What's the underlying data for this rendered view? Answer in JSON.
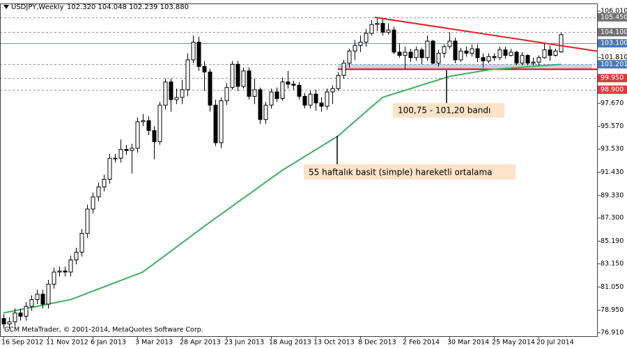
{
  "chart_data": {
    "type": "candlestick",
    "title": "USDJPY,Weekly",
    "subtitle": "102.320 104.048 102.239 103.880",
    "footer": "GCM MetaTrader, © 2001-2014, MetaQuotes Software Corp.",
    "categories": [
      "16 Sep 2012",
      null,
      null,
      null,
      null,
      null,
      null,
      null,
      "11 Nov 2012",
      null,
      null,
      null,
      null,
      null,
      null,
      null,
      "6 Jan 2013",
      null,
      null,
      null,
      null,
      null,
      null,
      null,
      "3 Mar 2013",
      null,
      null,
      null,
      null,
      null,
      null,
      null,
      "28 Apr 2013",
      null,
      null,
      null,
      null,
      null,
      null,
      null,
      "23 Jun 2013",
      null,
      null,
      null,
      null,
      null,
      null,
      null,
      "18 Aug 2013",
      null,
      null,
      null,
      null,
      null,
      null,
      null,
      "13 Oct 2013",
      null,
      null,
      null,
      null,
      null,
      null,
      null,
      "8 Dec 2013",
      null,
      null,
      null,
      null,
      null,
      null,
      null,
      "2 Feb 2014",
      null,
      null,
      null,
      null,
      null,
      null,
      null,
      "30 Mar 2014",
      null,
      null,
      null,
      null,
      null,
      null,
      null,
      "25 May 2014",
      null,
      null,
      null,
      null,
      null,
      null,
      null,
      "20 Jul 2014",
      null,
      null,
      null,
      null
    ],
    "open": [
      78.2,
      77.7,
      77.9,
      78.7,
      78.4,
      79.3,
      79.9,
      80.4,
      79.5,
      81.3,
      82.4,
      82.5,
      82.4,
      83.5,
      84.2,
      85.9,
      88.1,
      89.2,
      90.1,
      90.8,
      92.7,
      92.7,
      93.5,
      93.4,
      93.6,
      96.0,
      96.1,
      95.2,
      94.2,
      97.5,
      99.6,
      98.0,
      98.2,
      98.9,
      101.6,
      103.2,
      101.0,
      100.5,
      97.5,
      94.1,
      97.9,
      99.1,
      101.2,
      99.2,
      100.6,
      98.3,
      98.9,
      96.2,
      97.5,
      98.7,
      98.1,
      99.6,
      99.4,
      99.3,
      98.3,
      97.5,
      98.5,
      97.7,
      97.4,
      98.7,
      99.0,
      100.2,
      101.3,
      102.4,
      102.9,
      103.2,
      104.0,
      104.8,
      104.9,
      104.1,
      104.3,
      102.3,
      102.0,
      102.3,
      101.8,
      102.5,
      101.8,
      103.3,
      101.3,
      102.2,
      102.8,
      103.3,
      101.6,
      102.4,
      102.2,
      102.6,
      101.8,
      101.5,
      101.9,
      101.8,
      102.5,
      102.0,
      102.3,
      101.3,
      102.0,
      101.3,
      101.4,
      101.8,
      102.5,
      102.0,
      102.32
    ],
    "high": [
      78.6,
      78.3,
      79.1,
      79.1,
      79.7,
      80.3,
      80.8,
      80.8,
      81.7,
      82.8,
      82.9,
      82.9,
      83.9,
      84.6,
      86.3,
      88.5,
      89.6,
      90.5,
      91.2,
      93.1,
      93.1,
      94.4,
      93.9,
      94.0,
      96.4,
      96.7,
      96.5,
      95.6,
      97.8,
      99.9,
      99.9,
      99.0,
      99.8,
      102.2,
      103.8,
      103.7,
      101.5,
      100.8,
      98.0,
      98.2,
      99.5,
      101.5,
      101.5,
      100.9,
      100.9,
      99.9,
      99.1,
      97.8,
      99.0,
      99.1,
      100.0,
      100.6,
      99.7,
      99.6,
      98.6,
      98.8,
      98.9,
      98.2,
      99.0,
      99.3,
      100.5,
      101.6,
      102.6,
      103.4,
      103.8,
      104.4,
      105.2,
      105.45,
      105.4,
      104.9,
      104.6,
      103.1,
      102.8,
      102.6,
      102.8,
      102.7,
      103.8,
      103.4,
      102.5,
      103.0,
      104.1,
      103.6,
      102.7,
      102.8,
      103.0,
      103.0,
      102.2,
      102.2,
      102.2,
      102.8,
      102.8,
      102.6,
      102.4,
      102.3,
      102.1,
      101.8,
      102.0,
      103.1,
      102.9,
      102.6,
      104.048
    ],
    "low": [
      77.3,
      77.3,
      77.5,
      78.0,
      78.0,
      78.9,
      79.5,
      79.1,
      79.1,
      80.9,
      82.0,
      82.0,
      82.0,
      83.1,
      83.8,
      85.5,
      87.7,
      88.8,
      89.7,
      90.4,
      92.3,
      92.3,
      93.0,
      91.3,
      93.2,
      95.6,
      94.8,
      92.6,
      93.9,
      97.1,
      96.9,
      97.6,
      97.6,
      98.3,
      101.3,
      100.6,
      98.8,
      96.9,
      93.8,
      93.6,
      97.5,
      98.9,
      98.8,
      99.0,
      98.0,
      97.6,
      95.8,
      95.8,
      97.2,
      97.8,
      97.9,
      99.0,
      98.9,
      98.0,
      97.2,
      97.2,
      97.0,
      96.9,
      97.1,
      97.6,
      98.8,
      99.9,
      100.9,
      101.6,
      102.3,
      102.8,
      103.8,
      104.2,
      103.8,
      103.9,
      102.1,
      101.8,
      100.8,
      101.4,
      101.5,
      101.2,
      101.5,
      101.2,
      101.0,
      101.8,
      102.6,
      101.3,
      101.4,
      101.9,
      101.9,
      101.4,
      100.9,
      101.3,
      101.5,
      101.6,
      101.7,
      101.9,
      101.1,
      101.1,
      101.1,
      101.1,
      101.1,
      101.7,
      101.5,
      101.9,
      102.239
    ],
    "close": [
      77.7,
      77.9,
      78.7,
      78.4,
      79.3,
      79.9,
      80.4,
      79.5,
      81.3,
      82.4,
      82.5,
      82.4,
      83.5,
      84.2,
      85.9,
      88.1,
      89.2,
      90.1,
      90.8,
      92.7,
      92.7,
      93.5,
      93.4,
      93.6,
      96.0,
      96.1,
      95.2,
      94.2,
      97.5,
      99.6,
      98.0,
      98.2,
      98.9,
      101.6,
      103.2,
      101.0,
      100.5,
      97.5,
      94.1,
      97.9,
      99.1,
      101.2,
      99.2,
      100.6,
      98.3,
      98.9,
      96.2,
      97.5,
      98.7,
      98.1,
      99.6,
      99.4,
      99.3,
      98.3,
      97.5,
      98.5,
      97.7,
      97.4,
      98.7,
      99.0,
      100.2,
      101.3,
      102.4,
      102.9,
      103.2,
      104.0,
      104.8,
      104.9,
      104.1,
      104.3,
      102.3,
      102.0,
      102.3,
      101.8,
      102.5,
      101.8,
      103.3,
      101.3,
      102.2,
      102.8,
      103.3,
      101.6,
      102.4,
      102.2,
      102.6,
      101.8,
      101.5,
      101.9,
      101.8,
      102.5,
      102.0,
      102.3,
      101.3,
      102.0,
      101.3,
      101.4,
      101.8,
      102.5,
      102.0,
      102.4,
      103.88
    ],
    "up_color": "#ffffff",
    "down_color": "#000000",
    "moving_average": {
      "color": "#3cb060",
      "values": [
        78.7,
        78.8,
        78.9,
        79.0,
        79.1,
        79.2,
        79.3,
        79.4,
        79.5,
        79.6,
        79.7,
        79.8,
        79.9,
        80.09,
        80.28,
        80.48,
        80.67,
        80.86,
        81.05,
        81.25,
        81.44,
        81.63,
        81.82,
        82.02,
        82.21,
        82.4,
        82.78,
        83.15,
        83.53,
        83.9,
        84.28,
        84.65,
        85.03,
        85.4,
        85.78,
        86.15,
        86.53,
        86.9,
        87.26,
        87.62,
        87.98,
        88.35,
        88.71,
        89.07,
        89.43,
        89.79,
        90.15,
        90.52,
        90.88,
        91.24,
        91.6,
        91.91,
        92.22,
        92.53,
        92.84,
        93.15,
        93.46,
        93.77,
        94.08,
        94.39,
        94.7,
        95.14,
        95.58,
        96.01,
        96.45,
        96.89,
        97.33,
        97.76,
        98.2,
        98.36,
        98.52,
        98.68,
        98.83,
        98.99,
        99.15,
        99.31,
        99.47,
        99.63,
        99.78,
        99.94,
        100.1,
        100.19,
        100.27,
        100.36,
        100.44,
        100.53,
        100.61,
        100.7,
        100.74,
        100.78,
        100.82,
        100.85,
        100.89,
        100.93,
        100.97,
        101.01,
        101.05,
        101.08,
        101.12,
        101.16,
        101.2
      ]
    },
    "ylim": [
      76.6,
      106.7
    ],
    "yticks": [
      {
        "value": 106.01,
        "label": "106.010"
      },
      {
        "value": 101.81,
        "label": "101.810"
      },
      {
        "value": 97.67,
        "label": "97.670"
      },
      {
        "value": 95.57,
        "label": "95.570"
      },
      {
        "value": 93.53,
        "label": "93.530"
      },
      {
        "value": 91.43,
        "label": "91.430"
      },
      {
        "value": 89.33,
        "label": "89.330"
      },
      {
        "value": 87.3,
        "label": "87.300"
      },
      {
        "value": 85.19,
        "label": "85.190"
      },
      {
        "value": 83.15,
        "label": "83.150"
      },
      {
        "value": 81.05,
        "label": "81.050"
      },
      {
        "value": 78.95,
        "label": "78.950"
      },
      {
        "value": 76.91,
        "label": "76.910"
      }
    ],
    "levels": [
      {
        "value": 105.45,
        "label": "105.450",
        "color": "#707070",
        "style": "dashed"
      },
      {
        "value": 104.1,
        "label": "104.100",
        "color": "#707070",
        "style": "dashed"
      },
      {
        "value": 103.1,
        "label": "103.100",
        "color": "#4a78b0",
        "style": "solid"
      },
      {
        "value": 101.201,
        "label": "101.201",
        "color": "#4a78b0",
        "style": "dashed"
      },
      {
        "value": 99.95,
        "label": "99.950",
        "color": "#d04040",
        "style": "dashed"
      },
      {
        "value": 98.9,
        "label": "98.900",
        "color": "#d04040",
        "style": "dashed"
      }
    ],
    "band": {
      "from": 100.75,
      "to": 101.2,
      "start": 60,
      "color": "#b8cce4",
      "line_color": "#e00000"
    },
    "trend_line": {
      "x": [
        66.6,
        106.6
      ],
      "y": [
        105.45,
        102.38
      ],
      "color": "#e02020"
    },
    "annotations": [
      {
        "text": "100,75 - 101,20 bandı"
      },
      {
        "text": "55 haftalık basit (simple) hareketli ortalama"
      }
    ]
  }
}
